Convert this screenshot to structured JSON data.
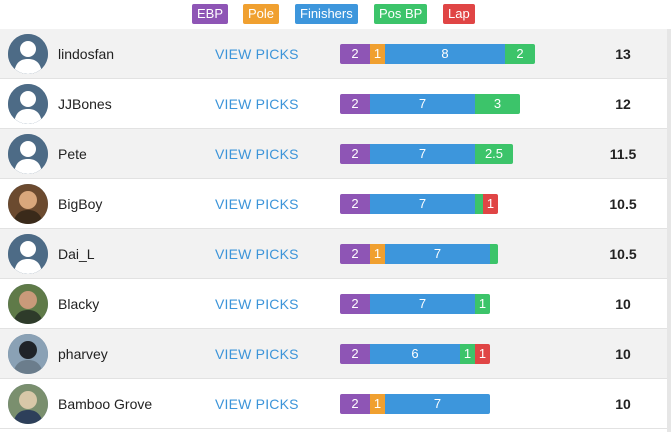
{
  "colors": {
    "ebp": "#8e55b5",
    "pole": "#f0a030",
    "finishers": "#3d96dc",
    "pos_bp": "#3cc46a",
    "lap": "#e04545",
    "link": "#3b94d9"
  },
  "legend": [
    {
      "key": "ebp",
      "label": "EBP"
    },
    {
      "key": "pole",
      "label": "Pole"
    },
    {
      "key": "fin",
      "label": "Finishers"
    },
    {
      "key": "posbp",
      "label": "Pos BP"
    },
    {
      "key": "lap",
      "label": "Lap"
    }
  ],
  "view_picks_label": "VIEW PICKS",
  "rows": [
    {
      "username": "lindosfan",
      "avatar": "default-avatar-icon",
      "total": "13",
      "segments": [
        {
          "type": "ebp",
          "value": "2"
        },
        {
          "type": "pole",
          "value": "1"
        },
        {
          "type": "fin",
          "value": "8"
        },
        {
          "type": "posbp",
          "value": "2"
        }
      ]
    },
    {
      "username": "JJBones",
      "avatar": "default-avatar-icon",
      "total": "12",
      "segments": [
        {
          "type": "ebp",
          "value": "2"
        },
        {
          "type": "fin",
          "value": "7"
        },
        {
          "type": "posbp",
          "value": "3"
        }
      ]
    },
    {
      "username": "Pete",
      "avatar": "default-avatar-icon",
      "total": "11.5",
      "segments": [
        {
          "type": "ebp",
          "value": "2"
        },
        {
          "type": "fin",
          "value": "7"
        },
        {
          "type": "posbp",
          "value": "2.5"
        }
      ]
    },
    {
      "username": "BigBoy",
      "avatar": "photo-avatar-icon",
      "total": "10.5",
      "segments": [
        {
          "type": "ebp",
          "value": "2"
        },
        {
          "type": "fin",
          "value": "7"
        },
        {
          "type": "posbp",
          "value": "0.5"
        },
        {
          "type": "lap",
          "value": "1"
        }
      ]
    },
    {
      "username": "Dai_L",
      "avatar": "default-avatar-icon",
      "total": "10.5",
      "segments": [
        {
          "type": "ebp",
          "value": "2"
        },
        {
          "type": "pole",
          "value": "1"
        },
        {
          "type": "fin",
          "value": "7"
        },
        {
          "type": "posbp",
          "value": "0.5"
        }
      ]
    },
    {
      "username": "Blacky",
      "avatar": "photo-avatar-icon",
      "total": "10",
      "segments": [
        {
          "type": "ebp",
          "value": "2"
        },
        {
          "type": "fin",
          "value": "7"
        },
        {
          "type": "posbp",
          "value": "1"
        }
      ]
    },
    {
      "username": "pharvey",
      "avatar": "photo-avatar-icon",
      "total": "10",
      "segments": [
        {
          "type": "ebp",
          "value": "2"
        },
        {
          "type": "fin",
          "value": "6"
        },
        {
          "type": "posbp",
          "value": "1"
        },
        {
          "type": "lap",
          "value": "1"
        }
      ]
    },
    {
      "username": "Bamboo Grove",
      "avatar": "photo-avatar-icon",
      "total": "10",
      "segments": [
        {
          "type": "ebp",
          "value": "2"
        },
        {
          "type": "pole",
          "value": "1"
        },
        {
          "type": "fin",
          "value": "7"
        }
      ]
    }
  ]
}
